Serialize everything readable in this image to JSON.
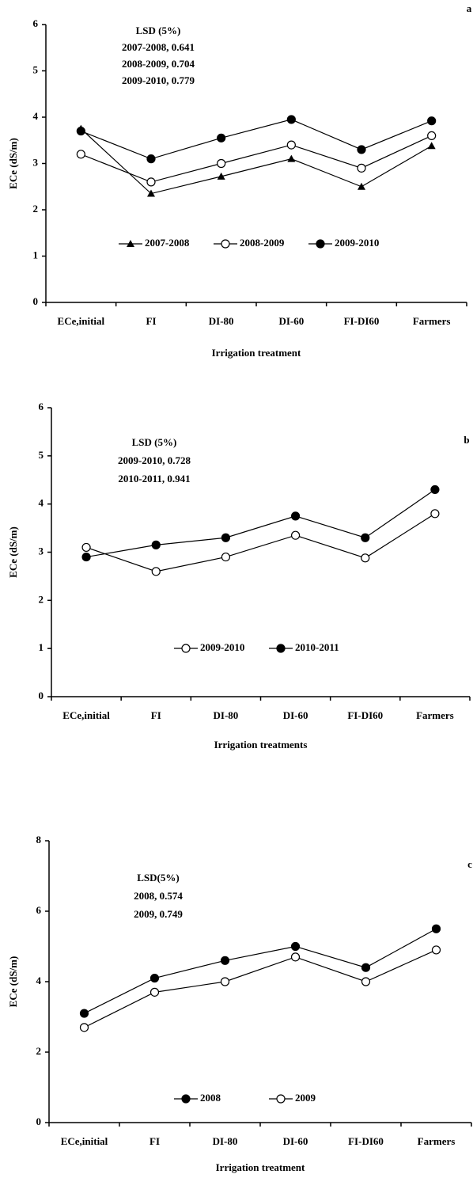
{
  "chart_data": [
    {
      "type": "line",
      "corner_label": "a",
      "x_label": "Irrigation treatment",
      "y_label": "ECe (dS/m)",
      "annotations": [
        "LSD (5%)",
        "2007-2008, 0.641",
        "2008-2009, 0.704",
        "2009-2010, 0.779"
      ],
      "categories": [
        "ECe,initial",
        "FI",
        "DI-80",
        "DI-60",
        "FI-DI60",
        "Farmers"
      ],
      "ylim": [
        0,
        6
      ],
      "yticks": [
        0,
        1,
        2,
        3,
        4,
        5,
        6
      ],
      "series": [
        {
          "name": "2007-2008",
          "color": "#000000",
          "marker": "triangle",
          "values": [
            3.75,
            2.35,
            2.72,
            3.1,
            2.5,
            3.38
          ]
        },
        {
          "name": "2008-2009",
          "color": "#000000",
          "marker": "circle-open",
          "values": [
            3.2,
            2.6,
            3.0,
            3.4,
            2.9,
            3.6
          ]
        },
        {
          "name": "2009-2010",
          "color": "#000000",
          "marker": "circle",
          "values": [
            3.7,
            3.1,
            3.55,
            3.95,
            3.3,
            3.92
          ]
        }
      ]
    },
    {
      "type": "line",
      "corner_label": "b",
      "x_label": "Irrigation treatments",
      "y_label": "ECe (dS/m)",
      "annotations": [
        "LSD (5%)",
        "2009-2010, 0.728",
        "2010-2011, 0.941"
      ],
      "categories": [
        "ECe,initial",
        "FI",
        "DI-80",
        "DI-60",
        "FI-DI60",
        "Farmers"
      ],
      "ylim": [
        0,
        6
      ],
      "yticks": [
        0,
        1,
        2,
        3,
        4,
        5,
        6
      ],
      "series": [
        {
          "name": "2009-2010",
          "color": "#000000",
          "marker": "circle-open",
          "values": [
            3.1,
            2.6,
            2.9,
            3.35,
            2.88,
            3.8
          ]
        },
        {
          "name": "2010-2011",
          "color": "#000000",
          "marker": "circle",
          "values": [
            2.9,
            3.15,
            3.3,
            3.75,
            3.3,
            4.3
          ]
        }
      ]
    },
    {
      "type": "line",
      "corner_label": "c",
      "x_label": "Irrigation treatment",
      "y_label": "ECe (dS/m)",
      "annotations": [
        "LSD(5%)",
        "2008, 0.574",
        "2009, 0.749"
      ],
      "categories": [
        "ECe,initial",
        "FI",
        "DI-80",
        "DI-60",
        "FI-DI60",
        "Farmers"
      ],
      "ylim": [
        0,
        8
      ],
      "yticks": [
        0,
        2,
        4,
        6,
        8
      ],
      "series": [
        {
          "name": "2008",
          "color": "#000000",
          "marker": "circle",
          "values": [
            3.1,
            4.1,
            4.6,
            5.0,
            4.4,
            5.5
          ]
        },
        {
          "name": "2009",
          "color": "#000000",
          "marker": "circle-open",
          "values": [
            2.7,
            3.7,
            4.0,
            4.7,
            4.0,
            4.9
          ]
        }
      ]
    }
  ]
}
